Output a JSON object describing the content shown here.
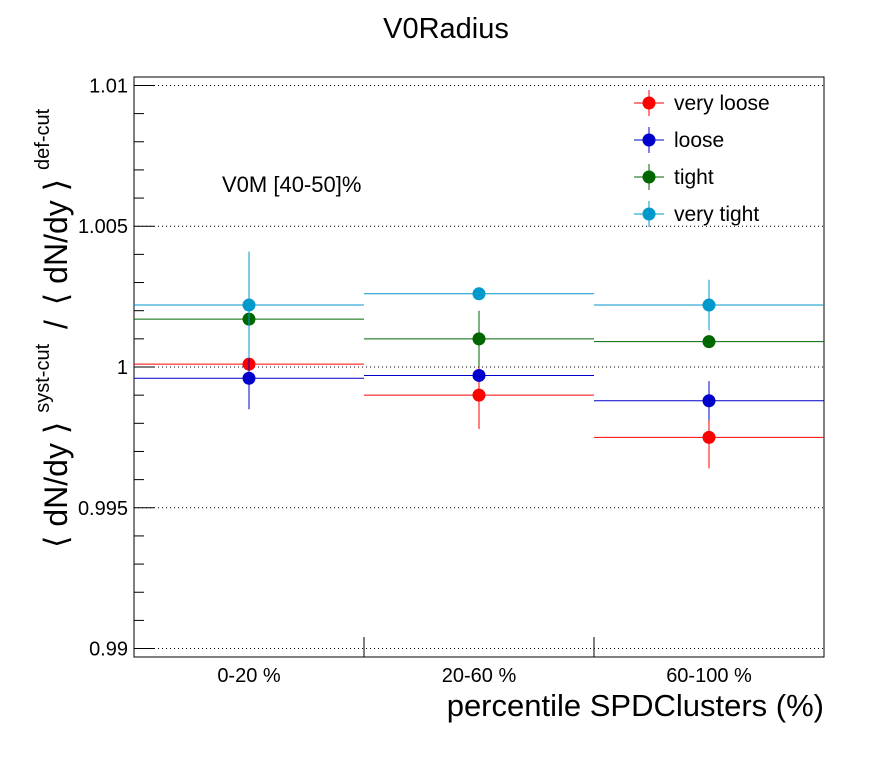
{
  "chart_data": {
    "type": "scatter",
    "title": "V0Radius",
    "xlabel": "percentile SPDClusters (%)",
    "ylabel": {
      "bra1": "⟨ dN/dy ⟩",
      "sup1": "syst-cut",
      "slash": "/",
      "bra2": "⟨ dN/dy ⟩",
      "sup2": "def-cut"
    },
    "annotation": "V0M [40-50]%",
    "categories": [
      "0-20 %",
      "20-60 %",
      "60-100 %"
    ],
    "x_edges": [
      0,
      1,
      2,
      3
    ],
    "ylim": [
      0.9897,
      1.0103
    ],
    "y_ticks": [
      0.99,
      0.995,
      1,
      1.005,
      1.01
    ],
    "y_tick_labels": [
      "0.99",
      "0.995",
      "1",
      "1.005",
      "1.01"
    ],
    "grid": "horizontal dotted",
    "legend_position": "top-right",
    "series": [
      {
        "name": "very loose",
        "color": "#ff0000",
        "values": [
          1.0001,
          0.999,
          0.9975
        ],
        "errors": [
          0.0,
          0.0012,
          0.0011
        ]
      },
      {
        "name": "loose",
        "color": "#0000cc",
        "values": [
          0.9996,
          0.9997,
          0.9988
        ],
        "errors": [
          0.0011,
          0.0,
          0.0007
        ]
      },
      {
        "name": "tight",
        "color": "#006600",
        "values": [
          1.0017,
          1.001,
          1.0009
        ],
        "errors": [
          0.0,
          0.001,
          0.0
        ]
      },
      {
        "name": "very tight",
        "color": "#0099cc",
        "values": [
          1.0022,
          1.0026,
          1.0022
        ],
        "errors": [
          0.0019,
          0.0,
          0.0009
        ]
      }
    ]
  }
}
